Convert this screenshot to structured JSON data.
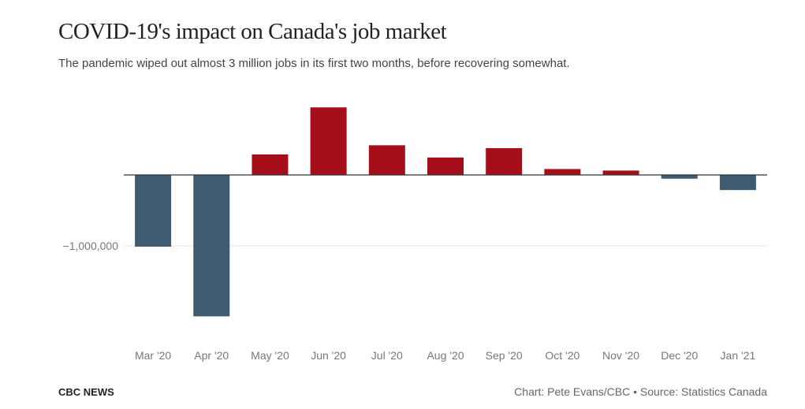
{
  "chart_data": {
    "type": "bar",
    "title": "COVID-19's impact on Canada's job market",
    "subtitle": "The pandemic wiped out almost 3 million jobs in its first two months, before recovering somewhat.",
    "categories": [
      "Mar '20",
      "Apr '20",
      "May '20",
      "Jun '20",
      "Jul '20",
      "Aug '20",
      "Sep '20",
      "Oct '20",
      "Nov '20",
      "Dec '20",
      "Jan '21"
    ],
    "values": [
      -1011000,
      -1993800,
      289600,
      952900,
      418500,
      245800,
      378200,
      83600,
      62100,
      -52700,
      -212800
    ],
    "y_ticks": [
      {
        "value": -1000000,
        "label": "−1,000,000"
      }
    ],
    "ylim": [
      -2300000,
      1000000
    ],
    "xlabel": "",
    "ylabel": "",
    "grid": true,
    "colors": {
      "positive": "#a50f1a",
      "negative": "#3e5b71"
    }
  },
  "footer": {
    "brand": "CBC NEWS",
    "credit": "Chart: Pete Evans/CBC • Source: Statistics Canada"
  }
}
